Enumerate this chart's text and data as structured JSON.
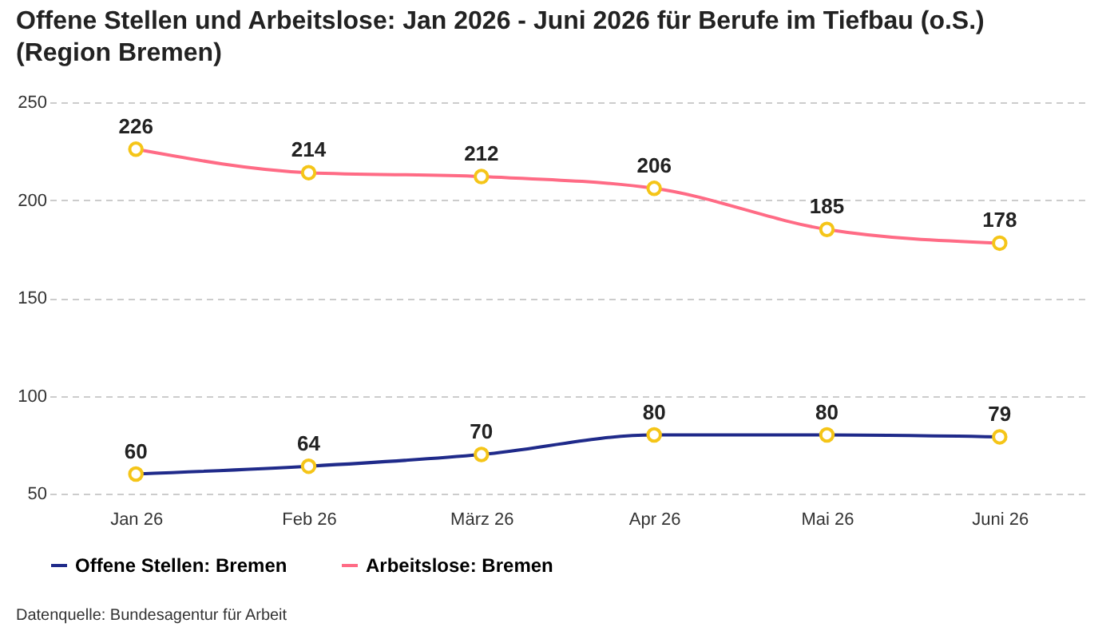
{
  "chart_data": {
    "type": "line",
    "title": "Offene Stellen und Arbeitslose: Jan 2026 - Juni 2026 für Berufe im Tiefbau (o.S.) (Region Bremen)",
    "categories": [
      "Jan 26",
      "Feb 26",
      "März 26",
      "Apr 26",
      "Mai 26",
      "Juni 26"
    ],
    "series": [
      {
        "name": "Offene Stellen: Bremen",
        "color": "#1f2a8a",
        "values": [
          60,
          64,
          70,
          80,
          80,
          79
        ]
      },
      {
        "name": "Arbeitslose: Bremen",
        "color": "#ff6b85",
        "values": [
          226,
          214,
          212,
          206,
          185,
          178
        ]
      }
    ],
    "ylim": [
      50,
      250
    ],
    "yticks": [
      50,
      100,
      150,
      200,
      250
    ],
    "grid": "y",
    "legend": "bottom",
    "marker": "circle",
    "data_labels": true,
    "annotations": [
      "Datenquelle: Bundesagentur für Arbeit"
    ]
  }
}
